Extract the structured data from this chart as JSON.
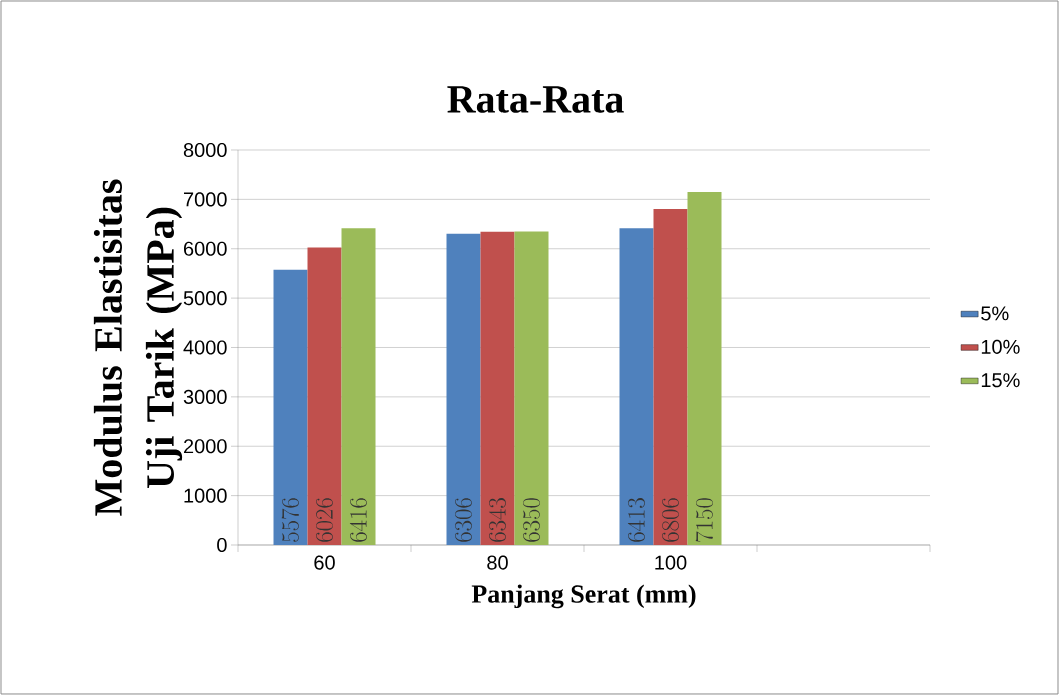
{
  "chart_data": {
    "type": "bar",
    "title": "Rata-Rata",
    "xlabel": "Panjang Serat (mm)",
    "ylabel": "Modulus Elastisitas Uji Tarik (MPa)",
    "categories": [
      "60",
      "80",
      "100",
      null
    ],
    "series": [
      {
        "name": "5%",
        "color": "#4f81bd",
        "values": [
          5576,
          6306,
          6413,
          null
        ]
      },
      {
        "name": "10%",
        "color": "#c0504d",
        "values": [
          6026,
          6343,
          6806,
          null
        ]
      },
      {
        "name": "15%",
        "color": "#9bbb59",
        "values": [
          6416,
          6350,
          7150,
          null
        ]
      }
    ],
    "ylim": [
      0,
      8000
    ],
    "yticks": [
      0,
      1000,
      2000,
      3000,
      4000,
      5000,
      6000,
      7000,
      8000
    ],
    "grid": "y",
    "legend": "right",
    "data_labels": true
  }
}
